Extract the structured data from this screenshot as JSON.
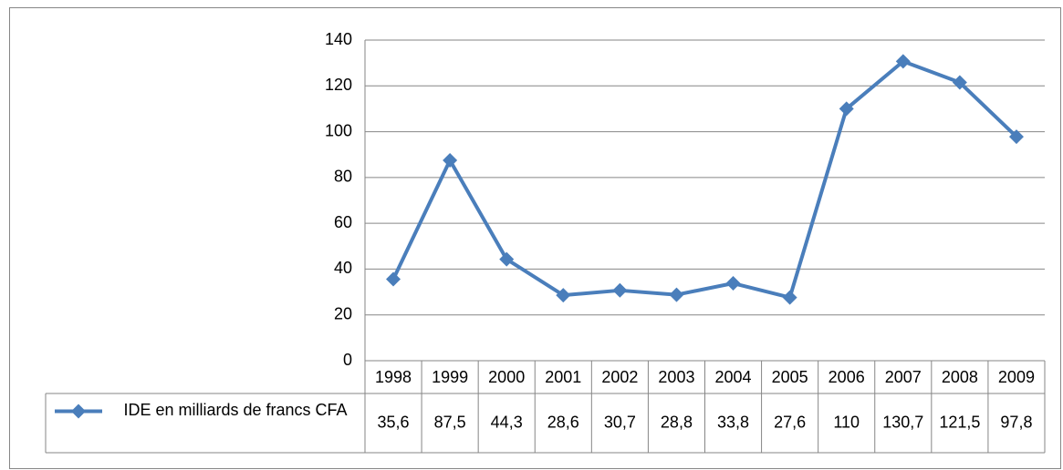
{
  "chart_data": {
    "type": "line",
    "categories": [
      "1998",
      "1999",
      "2000",
      "2001",
      "2002",
      "2003",
      "2004",
      "2005",
      "2006",
      "2007",
      "2008",
      "2009"
    ],
    "series": [
      {
        "name": "IDE en milliards de francs CFA",
        "color": "#4a7ebb",
        "values": [
          35.6,
          87.5,
          44.3,
          28.6,
          30.7,
          28.8,
          33.8,
          27.6,
          110,
          130.7,
          121.5,
          97.8
        ],
        "value_labels": [
          "35,6",
          "87,5",
          "44,3",
          "28,6",
          "30,7",
          "28,8",
          "33,8",
          "27,6",
          "110",
          "130,7",
          "121,5",
          "97,8"
        ]
      }
    ],
    "ylim": [
      0,
      140
    ],
    "yticks": [
      0,
      20,
      40,
      60,
      80,
      100,
      120,
      140
    ],
    "grid": true,
    "legend": "data-table"
  }
}
